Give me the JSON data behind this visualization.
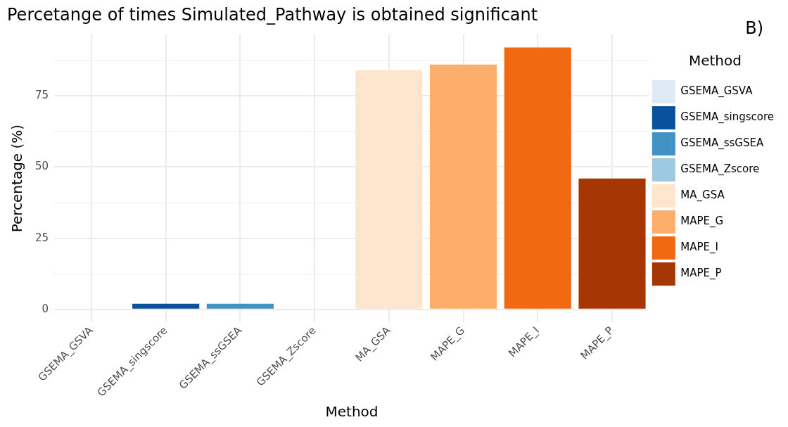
{
  "chart_data": {
    "type": "bar",
    "title": "Percetange of times Simulated_Pathway is obtained significant",
    "xlabel": "Method",
    "ylabel": "Percentage (%)",
    "legend_title": "Method",
    "categories": [
      "GSEMA_GSVA",
      "GSEMA_singscore",
      "GSEMA_ssGSEA",
      "GSEMA_Zscore",
      "MA_GSA",
      "MAPE_G",
      "MAPE_I",
      "MAPE_P"
    ],
    "series": [
      {
        "name": "GSEMA_GSVA",
        "color": "#deebf7",
        "values": [
          0,
          null,
          null,
          null,
          null,
          null,
          null,
          null
        ]
      },
      {
        "name": "GSEMA_singscore",
        "color": "#08519c",
        "values": [
          null,
          2,
          null,
          null,
          null,
          null,
          null,
          null
        ]
      },
      {
        "name": "GSEMA_ssGSEA",
        "color": "#4292c6",
        "values": [
          null,
          null,
          2,
          null,
          null,
          null,
          null,
          null
        ]
      },
      {
        "name": "GSEMA_Zscore",
        "color": "#9ecae1",
        "values": [
          null,
          null,
          null,
          0,
          null,
          null,
          null,
          null
        ]
      },
      {
        "name": "MA_GSA",
        "color": "#fee6ce",
        "values": [
          null,
          null,
          null,
          null,
          84,
          null,
          null,
          null
        ]
      },
      {
        "name": "MAPE_G",
        "color": "#fdae6b",
        "values": [
          null,
          null,
          null,
          null,
          null,
          86,
          null,
          null
        ]
      },
      {
        "name": "MAPE_I",
        "color": "#f16913",
        "values": [
          null,
          null,
          null,
          null,
          null,
          null,
          92,
          null
        ]
      },
      {
        "name": "MAPE_P",
        "color": "#a63603",
        "values": [
          null,
          null,
          null,
          null,
          null,
          null,
          null,
          46
        ]
      }
    ],
    "ylim": [
      -4.6,
      96.6
    ],
    "yticks": [
      0,
      {
        "value": 12.5,
        "label": null
      },
      25,
      {
        "value": 37.5,
        "label": null
      },
      50,
      {
        "value": 62.5,
        "label": null
      },
      75,
      {
        "value": 87.5,
        "label": null
      }
    ],
    "grid": true,
    "legend": "right",
    "annotations": [
      "B)"
    ]
  }
}
